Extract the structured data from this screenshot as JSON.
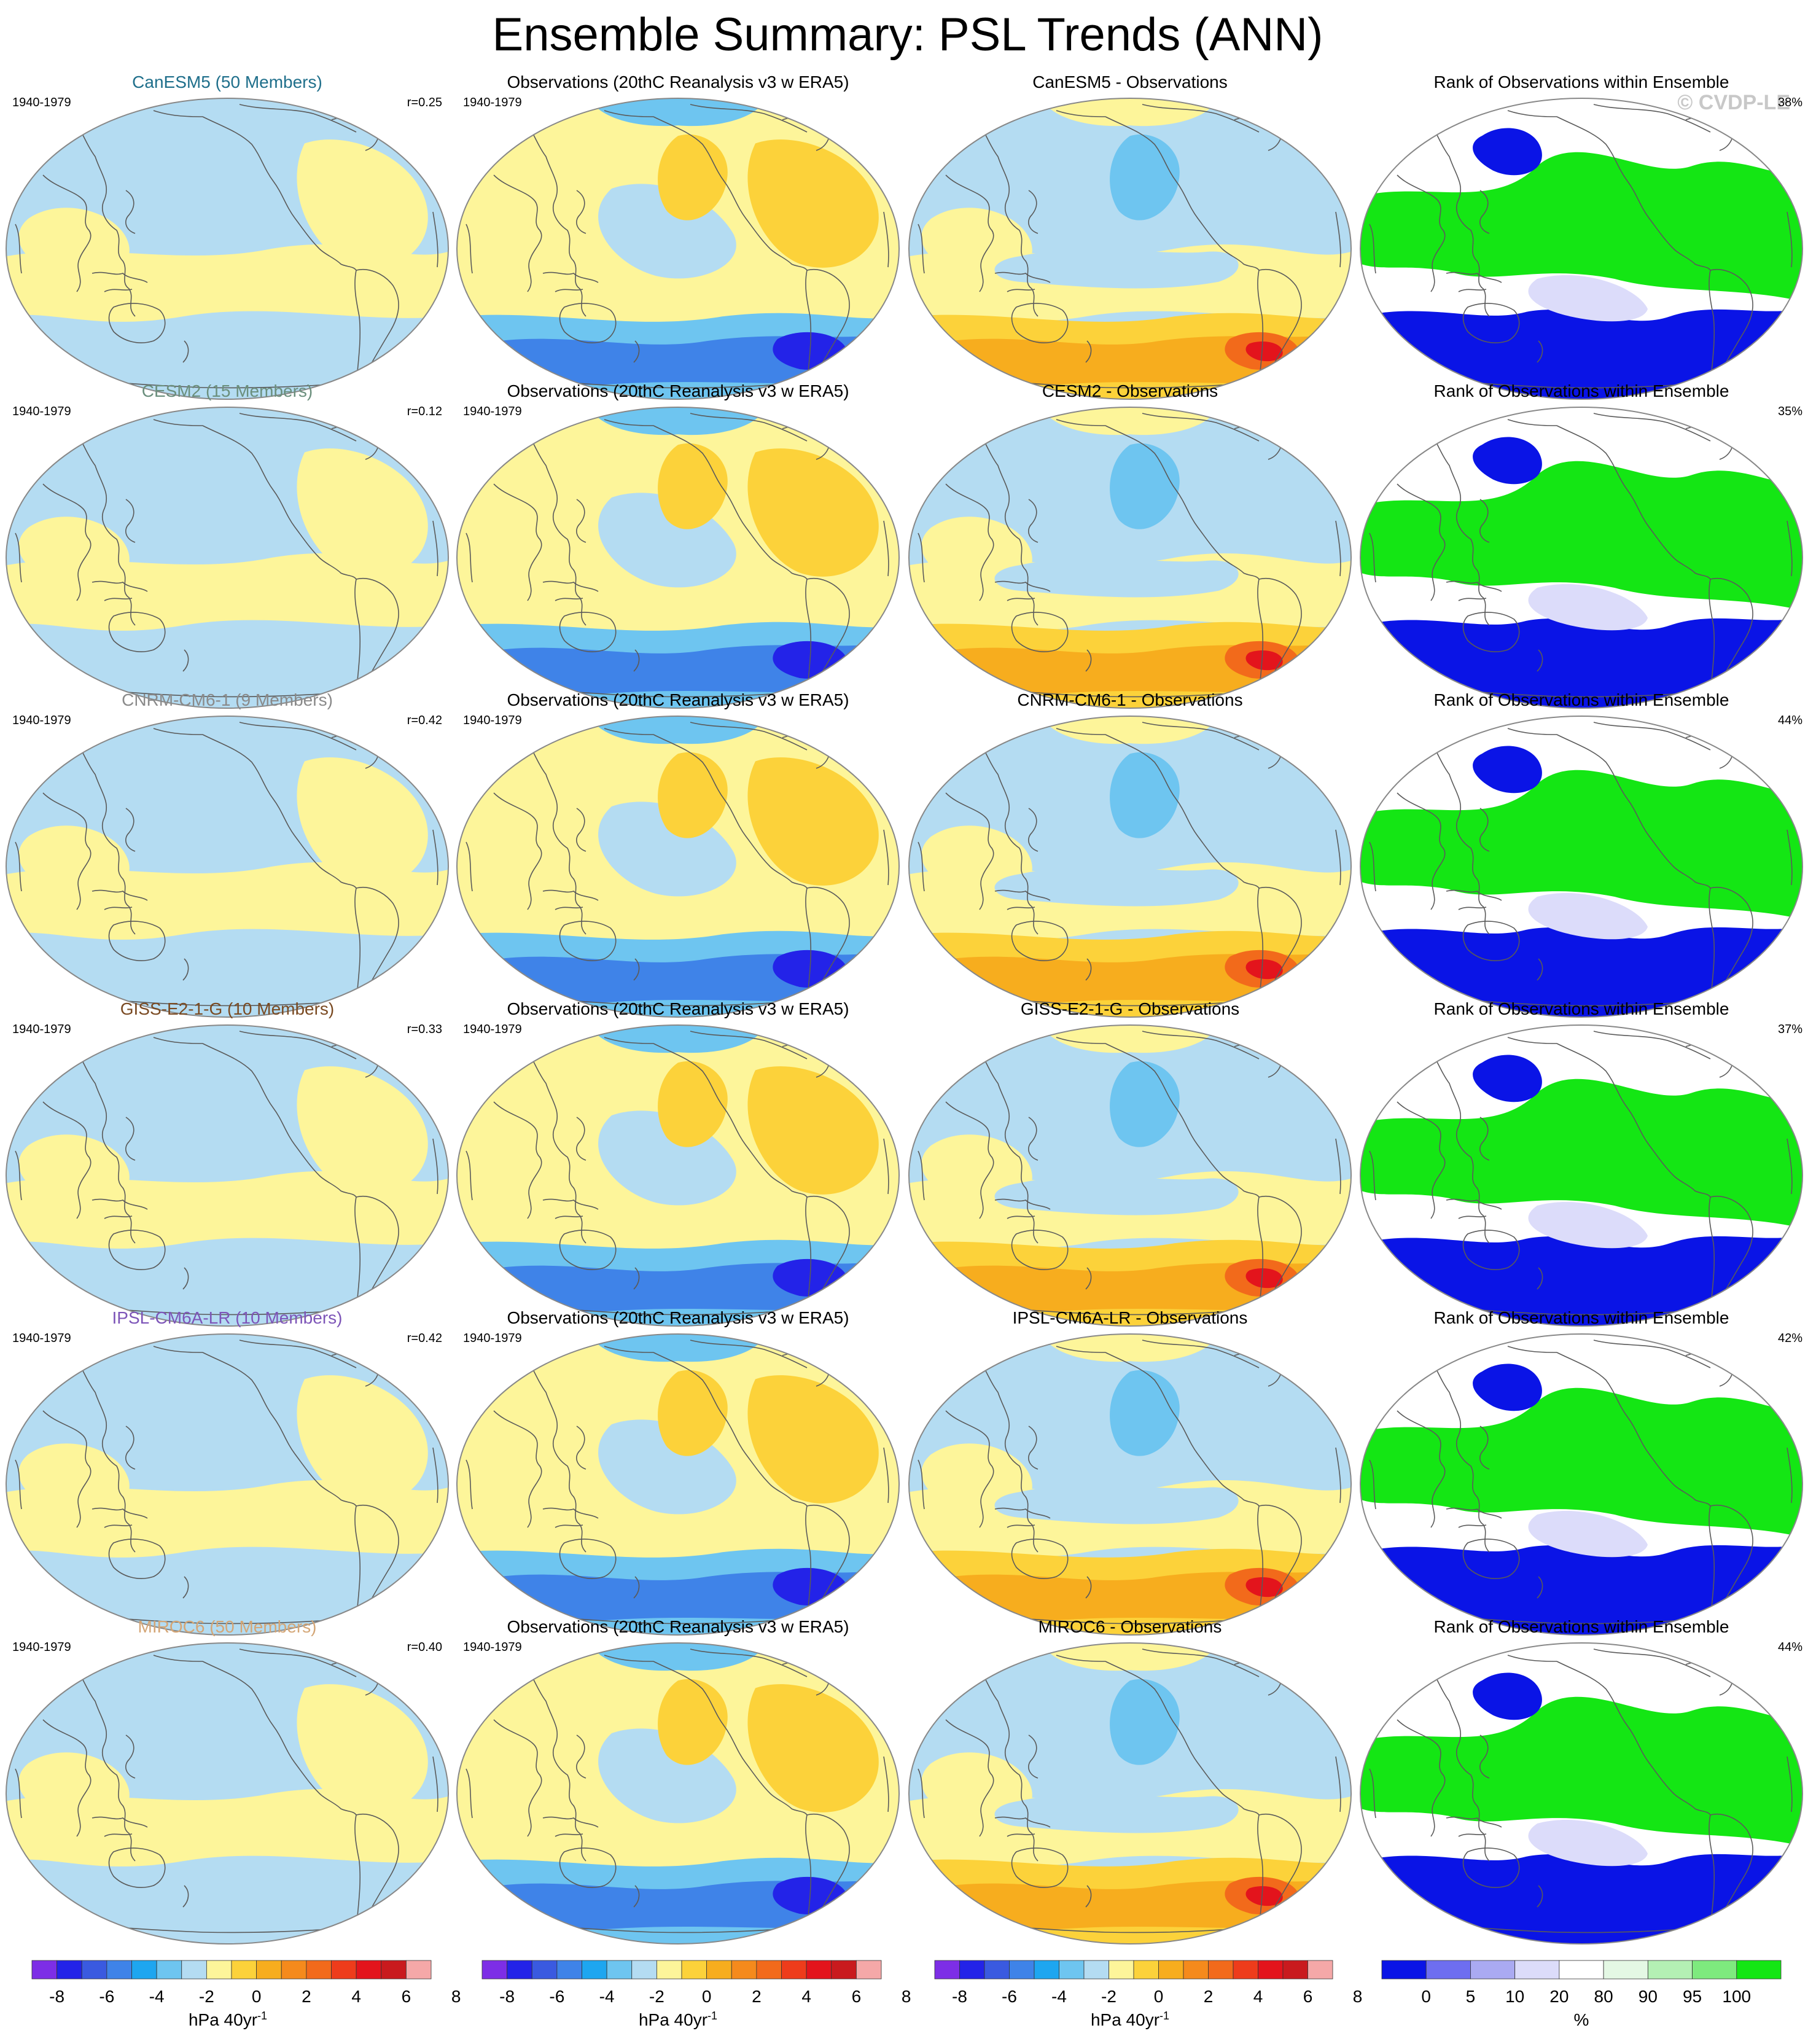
{
  "title": "Ensemble Summary: PSL Trends (ANN)",
  "watermark": "© CVDP-LE",
  "period": "1940-1979",
  "column_titles": {
    "observations": "Observations (20thC Reanalysis v3 w ERA5)",
    "rank": "Rank of Observations within Ensemble"
  },
  "rows": [
    {
      "model_title": "CanESM5 (50 Members)",
      "model_color": "#1f6f8b",
      "r_label": "r=0.25",
      "diff_title": "CanESM5 - Observations",
      "rank_pct": "38%"
    },
    {
      "model_title": "CESM2 (15 Members)",
      "model_color": "#6b8f7d",
      "r_label": "r=0.12",
      "diff_title": "CESM2 - Observations",
      "rank_pct": "35%"
    },
    {
      "model_title": "CNRM-CM6-1 (9 Members)",
      "model_color": "#8a8a8a",
      "r_label": "r=0.42",
      "diff_title": "CNRM-CM6-1 - Observations",
      "rank_pct": "44%"
    },
    {
      "model_title": "GISS-E2-1-G (10 Members)",
      "model_color": "#7a4a22",
      "r_label": "r=0.33",
      "diff_title": "GISS-E2-1-G - Observations",
      "rank_pct": "37%"
    },
    {
      "model_title": "IPSL-CM6A-LR (10 Members)",
      "model_color": "#7d55b8",
      "r_label": "r=0.42",
      "diff_title": "IPSL-CM6A-LR - Observations",
      "rank_pct": "42%"
    },
    {
      "model_title": "MIROC6 (50 Members)",
      "model_color": "#d4a676",
      "r_label": "r=0.40",
      "diff_title": "MIROC6 - Observations",
      "rank_pct": "44%"
    }
  ],
  "trend_colorbar": {
    "colors": [
      "#7d2ee6",
      "#2323e8",
      "#3a5ae0",
      "#3f83e8",
      "#1ea6f0",
      "#6ec5f0",
      "#b4dcf2",
      "#fdf59a",
      "#fcd23a",
      "#f7ad1e",
      "#f58a1c",
      "#f26a1b",
      "#ee3c1b",
      "#e3141c",
      "#c91a1e",
      "#f5a8a8"
    ],
    "labels": [
      "-8",
      "-6",
      "-4",
      "-2",
      "0",
      "2",
      "4",
      "6",
      "8"
    ],
    "units": "hPa 40yr",
    "units_sup": "-1"
  },
  "rank_colorbar": {
    "colors": [
      "#0a14e6",
      "#6e6ef0",
      "#aaaaf2",
      "#dcdcfa",
      "#ffffff",
      "#e4f8e4",
      "#b4f0b4",
      "#7eea7e",
      "#14e614"
    ],
    "labels": [
      "0",
      "5",
      "10",
      "20",
      "80",
      "90",
      "95",
      "100"
    ],
    "units": "%"
  },
  "map_colors": {
    "neg_weak": "#b4dcf2",
    "neg_mid": "#6ec5f0",
    "neg_strong": "#3f83e8",
    "neg_extreme": "#2323e8",
    "pos_weak": "#fdf59a",
    "pos_mid": "#fcd23a",
    "pos_strong": "#f7ad1e",
    "pos_extreme": "#f26a1b",
    "pos_core": "#e3141c",
    "rank_high": "#14e614",
    "rank_low": "#0a14e6",
    "rank_mid": "#ffffff",
    "rank_pale": "#dcdcfa"
  }
}
